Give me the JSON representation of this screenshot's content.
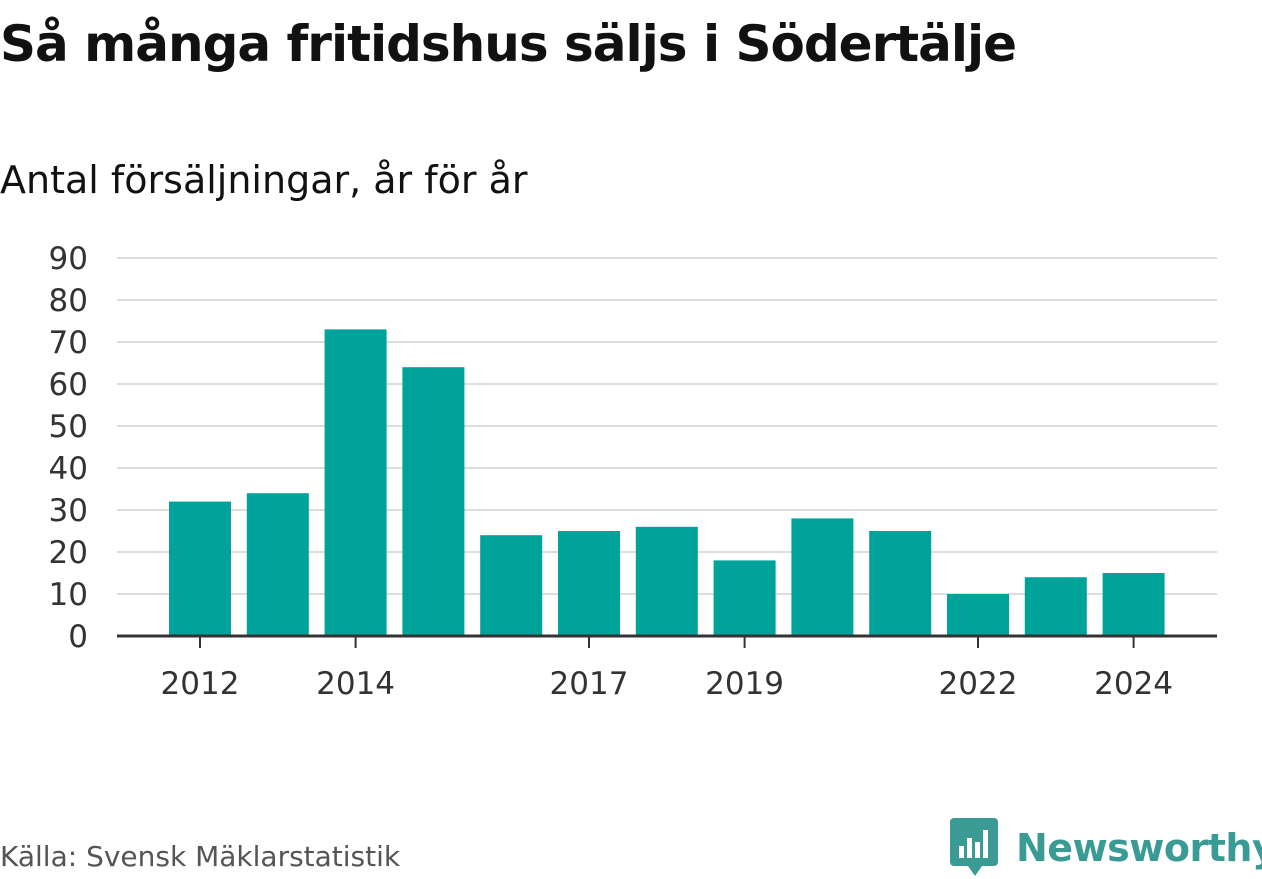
{
  "chart_data": {
    "type": "bar",
    "title": "Så många fritidshus säljs i Södertälje",
    "subtitle": "Antal försäljningar, år för år",
    "categories": [
      "2012",
      "2013",
      "2014",
      "2015",
      "2016",
      "2017",
      "2018",
      "2019",
      "2020",
      "2021",
      "2022",
      "2023",
      "2024"
    ],
    "values": [
      32,
      34,
      73,
      64,
      24,
      25,
      26,
      18,
      28,
      25,
      10,
      14,
      15
    ],
    "x_tick_labels": [
      "2012",
      "2014",
      "2017",
      "2019",
      "2022",
      "2024"
    ],
    "y_ticks": [
      0,
      10,
      20,
      30,
      40,
      50,
      60,
      70,
      80,
      90
    ],
    "ylim": [
      0,
      90
    ],
    "grid": true,
    "bar_color": "#00a39a"
  },
  "footer": {
    "source": "Källa: Svensk Mäklarstatistik",
    "brand": "Newsworthy",
    "brand_color": "#3a9a94"
  }
}
